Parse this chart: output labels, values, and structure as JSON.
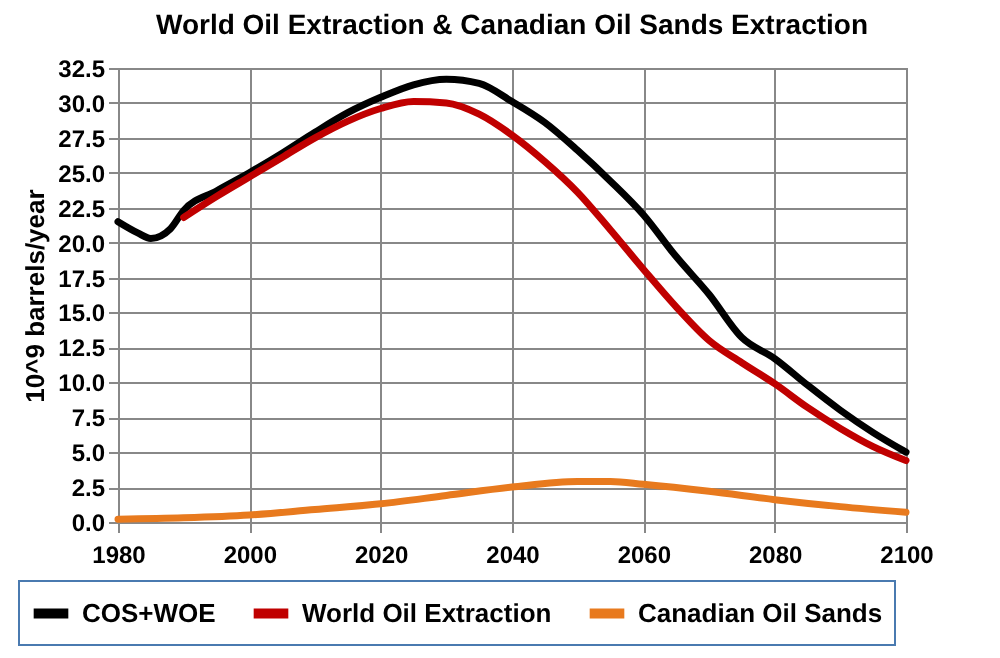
{
  "chart_data": {
    "type": "line",
    "title": "World Oil Extraction & Canadian Oil Sands Extraction",
    "ylabel": "10^9 barrels/year",
    "xlim": [
      1980,
      2100
    ],
    "xticks": [
      1980,
      2000,
      2020,
      2040,
      2060,
      2080,
      2100
    ],
    "ylim": [
      0,
      32.5
    ],
    "yticks": [
      {
        "value": 0,
        "label": "0.0"
      },
      {
        "value": 2.5,
        "label": "2.5"
      },
      {
        "value": 5,
        "label": "5.0"
      },
      {
        "value": 7.5,
        "label": "7.5"
      },
      {
        "value": 10,
        "label": "10.0"
      },
      {
        "value": 12.5,
        "label": "12.5"
      },
      {
        "value": 15,
        "label": "15.0"
      },
      {
        "value": 17.5,
        "label": "17.5"
      },
      {
        "value": 20,
        "label": "20.0"
      },
      {
        "value": 22.5,
        "label": "22.5"
      },
      {
        "value": 25,
        "label": "25.0"
      },
      {
        "value": 27.5,
        "label": "27.5"
      },
      {
        "value": 30,
        "label": "30.0"
      },
      {
        "value": 32.5,
        "label": "32.5"
      }
    ],
    "grid": true,
    "legend": "bottom",
    "marker": "none",
    "line_style": "solid",
    "series": [
      {
        "name": "COS+WOE",
        "color": "#000000",
        "x": [
          1980,
          1983,
          1985,
          1988,
          1990,
          1995,
          2000,
          2005,
          2010,
          2015,
          2020,
          2025,
          2030,
          2035,
          2040,
          2045,
          2050,
          2055,
          2060,
          2065,
          2070,
          2075,
          2080,
          2085,
          2090,
          2095,
          2100
        ],
        "values": [
          21.5,
          20.7,
          20.3,
          21.0,
          22.3,
          23.7,
          25.0,
          26.4,
          27.9,
          29.3,
          30.4,
          31.3,
          31.7,
          31.4,
          30.1,
          28.6,
          26.6,
          24.4,
          22.0,
          19.0,
          16.3,
          13.2,
          11.7,
          9.8,
          8.0,
          6.4,
          5.0
        ]
      },
      {
        "name": "World Oil Extraction",
        "color": "#c00000",
        "x": [
          1990,
          1995,
          2000,
          2005,
          2010,
          2015,
          2020,
          2025,
          2030,
          2035,
          2040,
          2045,
          2050,
          2055,
          2060,
          2065,
          2070,
          2075,
          2080,
          2085,
          2090,
          2095,
          2100
        ],
        "values": [
          21.8,
          23.3,
          24.7,
          26.1,
          27.5,
          28.7,
          29.6,
          30.1,
          30.0,
          29.2,
          27.7,
          25.8,
          23.6,
          20.9,
          18.1,
          15.4,
          13.0,
          11.4,
          9.9,
          8.2,
          6.7,
          5.4,
          4.4
        ]
      },
      {
        "name": "Canadian Oil Sands",
        "color": "#e87a1e",
        "x": [
          1980,
          1990,
          2000,
          2010,
          2020,
          2030,
          2040,
          2050,
          2055,
          2060,
          2070,
          2080,
          2090,
          2100
        ],
        "values": [
          0.2,
          0.3,
          0.5,
          0.9,
          1.3,
          1.9,
          2.5,
          2.9,
          2.9,
          2.7,
          2.2,
          1.6,
          1.1,
          0.7
        ]
      }
    ]
  }
}
